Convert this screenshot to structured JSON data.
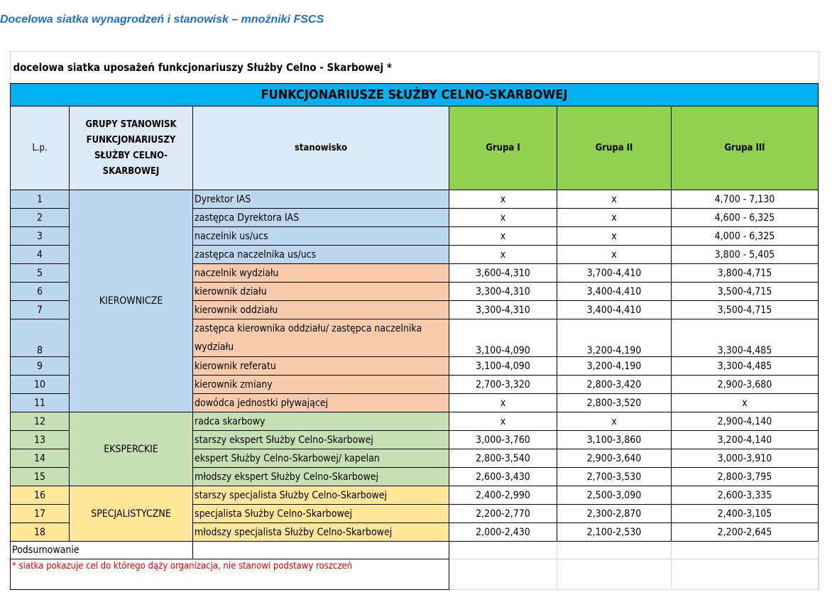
{
  "title": "Docelowa siatka wynagrodzeń i stanowisk – mnożniki FSCS",
  "subtitle": "docelowa siatka uposażeń funkcjonariuszy Służby Celno - Skarbowej *",
  "banner": "FUNKCJONARIUSZE SŁUŻBY CELNO-SKARBOWEJ",
  "headers": {
    "lp": "L.p.",
    "group": "GRUPY STANOWISK FUNKCJONARIUSZY SŁUŻBY CELNO-SKARBOWEJ",
    "position": "stanowisko",
    "g1": "Grupa I",
    "g2": "Grupa II",
    "g3": "Grupa III"
  },
  "groups": {
    "kier": "KIEROWNICZE",
    "eksp": "EKSPERCKIE",
    "spec": "SPECJALISTYCZNE"
  },
  "colors": {
    "banner": "#00b0f0",
    "header": "#ddebf7",
    "group_header": "#92d050",
    "kierownicze_top": "#bdd7ee",
    "kierownicze_mid": "#f8cbad",
    "eksperckie": "#c6e0b4",
    "specjalistyczne": "#ffe699",
    "footnote": "#ee0000"
  },
  "rows": [
    {
      "lp": "1",
      "position": "Dyrektor IAS",
      "g1": "x",
      "g2": "x",
      "g3": "4,700 - 7,130"
    },
    {
      "lp": "2",
      "position": "zastępca Dyrektora IAS",
      "g1": "x",
      "g2": "x",
      "g3": "4,600 - 6,325"
    },
    {
      "lp": "3",
      "position": "naczelnik us/ucs",
      "g1": "x",
      "g2": "x",
      "g3": "4,000 - 6,325"
    },
    {
      "lp": "4",
      "position": "zastępca naczelnika us/ucs",
      "g1": "x",
      "g2": "x",
      "g3": "3,800 - 5,405"
    },
    {
      "lp": "5",
      "position": "naczelnik wydziału",
      "g1": "3,600-4,310",
      "g2": "3,700-4,410",
      "g3": "3,800-4,715"
    },
    {
      "lp": "6",
      "position": "kierownik działu",
      "g1": "3,300-4,310",
      "g2": "3,400-4,410",
      "g3": "3,500-4,715"
    },
    {
      "lp": "7",
      "position": "kierownik oddziału",
      "g1": "3,300-4,310",
      "g2": "3,400-4,410",
      "g3": "3,500-4,715"
    },
    {
      "lp": "8",
      "position": "zastępca kierownika oddziału/ zastępca naczelnika wydziału",
      "g1": "3,100-4,090",
      "g2": "3,200-4,190",
      "g3": "3,300-4,485"
    },
    {
      "lp": "9",
      "position": "kierownik referatu",
      "g1": "3,100-4,090",
      "g2": "3,200-4,190",
      "g3": "3,300-4,485"
    },
    {
      "lp": "10",
      "position": "kierownik zmiany",
      "g1": "2,700-3,320",
      "g2": "2,800-3,420",
      "g3": "2,900-3,680"
    },
    {
      "lp": "11",
      "position": "dowódca jednostki pływającej",
      "g1": "x",
      "g2": "2,800-3,520",
      "g3": "x"
    },
    {
      "lp": "12",
      "position": "radca skarbowy",
      "g1": "x",
      "g2": "x",
      "g3": "2,900-4,140"
    },
    {
      "lp": "13",
      "position": "starszy ekspert Służby Celno-Skarbowej",
      "g1": "3,000-3,760",
      "g2": "3,100-3,860",
      "g3": "3,200-4,140"
    },
    {
      "lp": "14",
      "position": "ekspert Służby Celno-Skarbowej/ kapelan",
      "g1": "2,800-3,540",
      "g2": "2,900-3,640",
      "g3": "3,000-3,910"
    },
    {
      "lp": "15",
      "position": "młodszy ekspert Służby Celno-Skarbowej",
      "g1": "2,600-3,430",
      "g2": "2,700-3,530",
      "g3": "2,800-3,795"
    },
    {
      "lp": "16",
      "position": "starszy specjalista Służby Celno-Skarbowej",
      "g1": "2,400-2,990",
      "g2": "2,500-3,090",
      "g3": "2,600-3,335"
    },
    {
      "lp": "17",
      "position": "specjalista Służby Celno-Skarbowej",
      "g1": "2,200-2,770",
      "g2": "2,300-2,870",
      "g3": "2,400-3,105"
    },
    {
      "lp": "18",
      "position": "młodszy specjalista Służby Celno-Skarbowej",
      "g1": "2,000-2,430",
      "g2": "2,100-2,530",
      "g3": "2,200-2,645"
    }
  ],
  "summary": "Podsumowanie",
  "footnote": "* siatka pokazuje cel do którego dąży organizacja, nie stanowi podstawy roszczeń"
}
